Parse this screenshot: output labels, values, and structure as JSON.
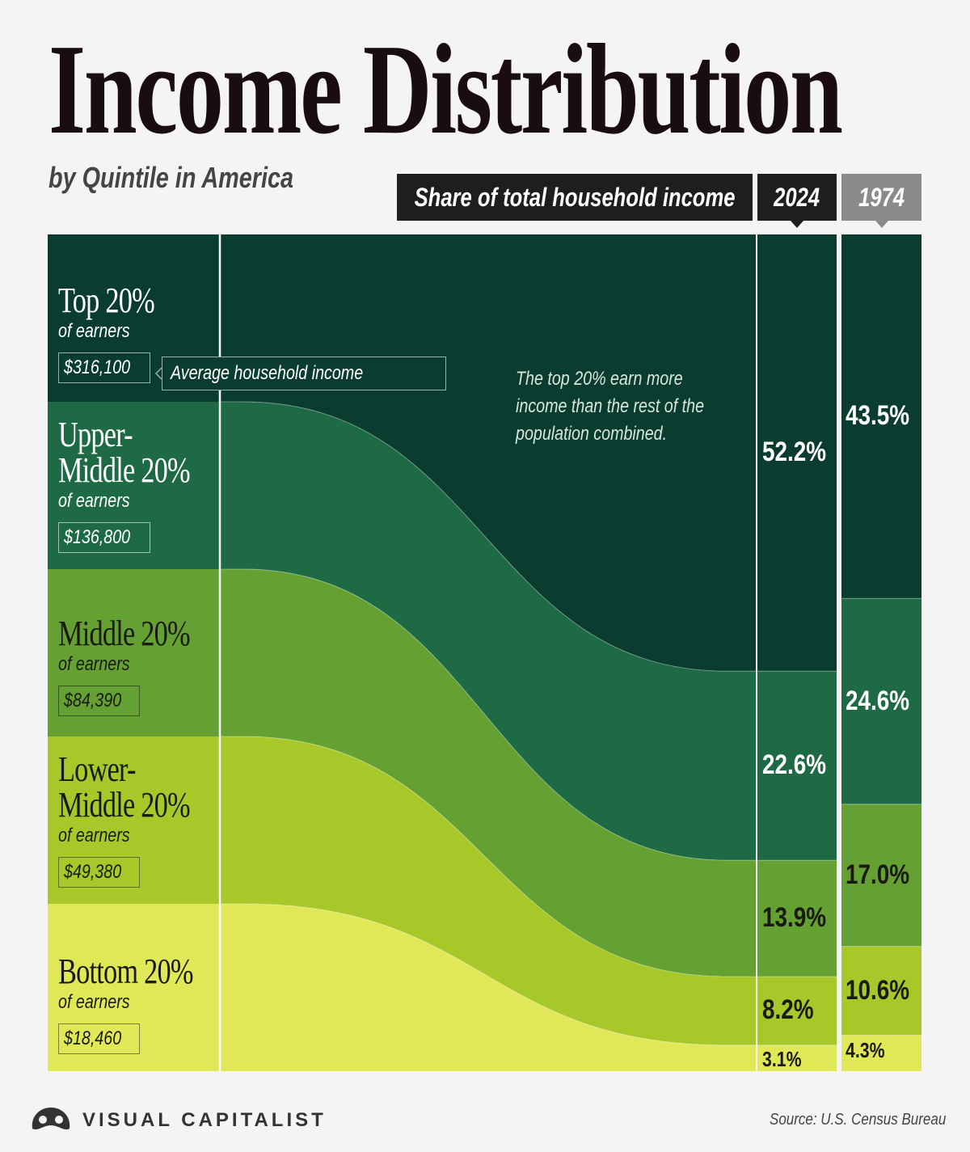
{
  "title": "Income Distribution",
  "subtitle": "by Quintile in America",
  "header": {
    "share_label": "Share of total household income",
    "year_2024": "2024",
    "year_1974": "1974"
  },
  "annotation": "The top 20% earn more income than the rest of the population combined.",
  "avg_income_label": "Average household income",
  "colors": {
    "top": "#0a3d30",
    "upper_middle": "#1d6a45",
    "middle": "#64a032",
    "lower_middle": "#a8c82a",
    "bottom": "#e0e858",
    "header_dark": "#1e1e1e",
    "header_gray": "#8a8a8a"
  },
  "quintiles": [
    {
      "name": "Top 20%",
      "sub": "of earners",
      "income": "$316,100",
      "p2024": "52.2%",
      "p1974": "43.5%"
    },
    {
      "name": "Upper-Middle 20%",
      "sub": "of earners",
      "income": "$136,800",
      "p2024": "22.6%",
      "p1974": "24.6%"
    },
    {
      "name": "Middle 20%",
      "sub": "of earners",
      "income": "$84,390",
      "p2024": "13.9%",
      "p1974": "17.0%"
    },
    {
      "name": "Lower-Middle 20%",
      "sub": "of earners",
      "income": "$49,380",
      "p2024": "8.2%",
      "p1974": "10.6%"
    },
    {
      "name": "Bottom 20%",
      "sub": "of earners",
      "income": "$18,460",
      "p2024": "3.1%",
      "p1974": "4.3%"
    }
  ],
  "chart_data": {
    "type": "area",
    "title": "Income Distribution",
    "subtitle": "by Quintile in America",
    "categories": [
      "Top 20%",
      "Upper-Middle 20%",
      "Middle 20%",
      "Lower-Middle 20%",
      "Bottom 20%"
    ],
    "average_household_income": [
      316100,
      136800,
      84390,
      49380,
      18460
    ],
    "series": [
      {
        "name": "2024",
        "values": [
          52.2,
          22.6,
          13.9,
          8.2,
          3.1
        ]
      },
      {
        "name": "1974",
        "values": [
          43.5,
          24.6,
          17.0,
          10.6,
          4.3
        ]
      }
    ],
    "unit": "Share of total household income (%)"
  },
  "source": "Source: U.S. Census Bureau",
  "brand": "VISUAL CAPITALIST"
}
